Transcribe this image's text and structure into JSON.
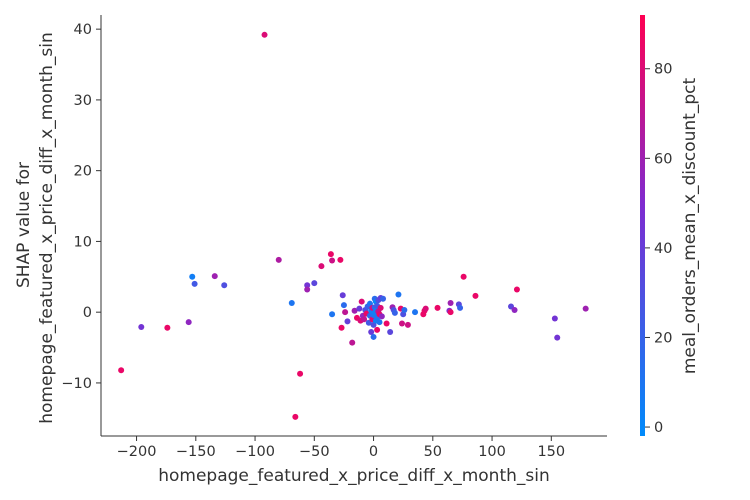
{
  "chart_data": {
    "type": "scatter",
    "title": "",
    "xlabel": "homepage_featured_x_price_diff_x_month_sin",
    "ylabel_line1": "SHAP value for",
    "ylabel_line2": "homepage_featured_x_price_diff_x_month_sin",
    "xlim": [
      -230,
      197
    ],
    "ylim": [
      -17.5,
      42
    ],
    "xticks": [
      -200,
      -150,
      -100,
      -50,
      0,
      50,
      100,
      150
    ],
    "yticks": [
      -10,
      0,
      10,
      20,
      30,
      40
    ],
    "grid": false,
    "colorbar": {
      "label": "meal_orders_mean_x_discount_pct",
      "range": [
        -2,
        92
      ],
      "ticks": [
        0,
        20,
        40,
        60,
        80
      ],
      "colors": [
        "#008bfb",
        "#ff0052"
      ]
    },
    "points": [
      {
        "x": -92,
        "y": 39.2,
        "c": 80
      },
      {
        "x": -213,
        "y": -8.2,
        "c": 85
      },
      {
        "x": -196,
        "y": -2.1,
        "c": 45
      },
      {
        "x": -174,
        "y": -2.2,
        "c": 85
      },
      {
        "x": -156,
        "y": -1.4,
        "c": 55
      },
      {
        "x": -153,
        "y": 5.0,
        "c": 5
      },
      {
        "x": -151,
        "y": 4.0,
        "c": 25
      },
      {
        "x": -134,
        "y": 5.1,
        "c": 60
      },
      {
        "x": -126,
        "y": 3.8,
        "c": 30
      },
      {
        "x": -80,
        "y": 7.4,
        "c": 65
      },
      {
        "x": -69,
        "y": 1.3,
        "c": 10
      },
      {
        "x": -62,
        "y": -8.7,
        "c": 85
      },
      {
        "x": -66,
        "y": -14.8,
        "c": 85
      },
      {
        "x": -56,
        "y": 3.8,
        "c": 45
      },
      {
        "x": -56,
        "y": 3.2,
        "c": 60
      },
      {
        "x": -50,
        "y": 4.1,
        "c": 35
      },
      {
        "x": -44,
        "y": 6.5,
        "c": 80
      },
      {
        "x": -36,
        "y": 8.2,
        "c": 85
      },
      {
        "x": -35,
        "y": 7.3,
        "c": 75
      },
      {
        "x": -28,
        "y": 7.4,
        "c": 85
      },
      {
        "x": -35,
        "y": -0.3,
        "c": 10
      },
      {
        "x": -26,
        "y": 2.4,
        "c": 40
      },
      {
        "x": -25,
        "y": 1.0,
        "c": 15
      },
      {
        "x": -24,
        "y": 0.0,
        "c": 70
      },
      {
        "x": -27,
        "y": -2.2,
        "c": 85
      },
      {
        "x": -22,
        "y": -1.3,
        "c": 40
      },
      {
        "x": -18,
        "y": -4.3,
        "c": 70
      },
      {
        "x": -16,
        "y": 0.2,
        "c": 60
      },
      {
        "x": -14,
        "y": -0.8,
        "c": 85
      },
      {
        "x": -12,
        "y": 0.5,
        "c": 40
      },
      {
        "x": -11,
        "y": -1.2,
        "c": 80
      },
      {
        "x": -10,
        "y": 1.5,
        "c": 80
      },
      {
        "x": -9,
        "y": -0.5,
        "c": 55
      },
      {
        "x": -8,
        "y": -1.0,
        "c": 70
      },
      {
        "x": -7,
        "y": 0.3,
        "c": 30
      },
      {
        "x": -6,
        "y": -0.2,
        "c": 85
      },
      {
        "x": -5,
        "y": 0.8,
        "c": 20
      },
      {
        "x": -4,
        "y": -1.5,
        "c": 25
      },
      {
        "x": -3,
        "y": 1.2,
        "c": 10
      },
      {
        "x": -3,
        "y": -0.5,
        "c": 15
      },
      {
        "x": -2,
        "y": -2.8,
        "c": 40
      },
      {
        "x": -2,
        "y": 0.2,
        "c": 5
      },
      {
        "x": -1,
        "y": -1.0,
        "c": 80
      },
      {
        "x": -1,
        "y": 0.6,
        "c": 75
      },
      {
        "x": 0,
        "y": -3.5,
        "c": 15
      },
      {
        "x": 0,
        "y": -1.8,
        "c": 30
      },
      {
        "x": 0,
        "y": -0.4,
        "c": 10
      },
      {
        "x": 1,
        "y": 1.9,
        "c": 15
      },
      {
        "x": 1,
        "y": -0.1,
        "c": 5
      },
      {
        "x": 1,
        "y": 0.7,
        "c": 20
      },
      {
        "x": 2,
        "y": 1.5,
        "c": 0
      },
      {
        "x": 2,
        "y": -1.2,
        "c": 5
      },
      {
        "x": 2,
        "y": 0.3,
        "c": 5
      },
      {
        "x": 3,
        "y": -0.8,
        "c": 10
      },
      {
        "x": 3,
        "y": 0.9,
        "c": 25
      },
      {
        "x": 3,
        "y": -2.5,
        "c": 85
      },
      {
        "x": 4,
        "y": 0.1,
        "c": 70
      },
      {
        "x": 4,
        "y": 1.7,
        "c": 30
      },
      {
        "x": 5,
        "y": -0.3,
        "c": 85
      },
      {
        "x": 5,
        "y": -1.4,
        "c": 10
      },
      {
        "x": 6,
        "y": 0.6,
        "c": 80
      },
      {
        "x": 6,
        "y": 2.0,
        "c": 40
      },
      {
        "x": 7,
        "y": -0.6,
        "c": 55
      },
      {
        "x": 8,
        "y": 1.9,
        "c": 20
      },
      {
        "x": 11,
        "y": -1.6,
        "c": 85
      },
      {
        "x": 14,
        "y": -2.8,
        "c": 35
      },
      {
        "x": 16,
        "y": 0.7,
        "c": 60
      },
      {
        "x": 17,
        "y": 0.3,
        "c": 30
      },
      {
        "x": 18,
        "y": -0.1,
        "c": 20
      },
      {
        "x": 21,
        "y": 2.5,
        "c": 10
      },
      {
        "x": 23,
        "y": 0.5,
        "c": 85
      },
      {
        "x": 24,
        "y": -1.6,
        "c": 75
      },
      {
        "x": 25,
        "y": -0.3,
        "c": 30
      },
      {
        "x": 26,
        "y": 0.3,
        "c": 15
      },
      {
        "x": 29,
        "y": -1.8,
        "c": 75
      },
      {
        "x": 35,
        "y": 0.0,
        "c": 10
      },
      {
        "x": 42,
        "y": -0.3,
        "c": 85
      },
      {
        "x": 43,
        "y": 0.2,
        "c": 85
      },
      {
        "x": 44,
        "y": 0.5,
        "c": 80
      },
      {
        "x": 54,
        "y": 0.6,
        "c": 85
      },
      {
        "x": 64,
        "y": 0.2,
        "c": 50
      },
      {
        "x": 65,
        "y": 1.3,
        "c": 60
      },
      {
        "x": 65,
        "y": 0.0,
        "c": 85
      },
      {
        "x": 72,
        "y": 1.1,
        "c": 35
      },
      {
        "x": 73,
        "y": 0.6,
        "c": 20
      },
      {
        "x": 76,
        "y": 5.0,
        "c": 85
      },
      {
        "x": 86,
        "y": 2.3,
        "c": 85
      },
      {
        "x": 116,
        "y": 0.8,
        "c": 35
      },
      {
        "x": 119,
        "y": 0.3,
        "c": 55
      },
      {
        "x": 121,
        "y": 3.2,
        "c": 85
      },
      {
        "x": 153,
        "y": -0.9,
        "c": 45
      },
      {
        "x": 155,
        "y": -3.6,
        "c": 45
      },
      {
        "x": 179,
        "y": 0.5,
        "c": 60
      }
    ]
  }
}
